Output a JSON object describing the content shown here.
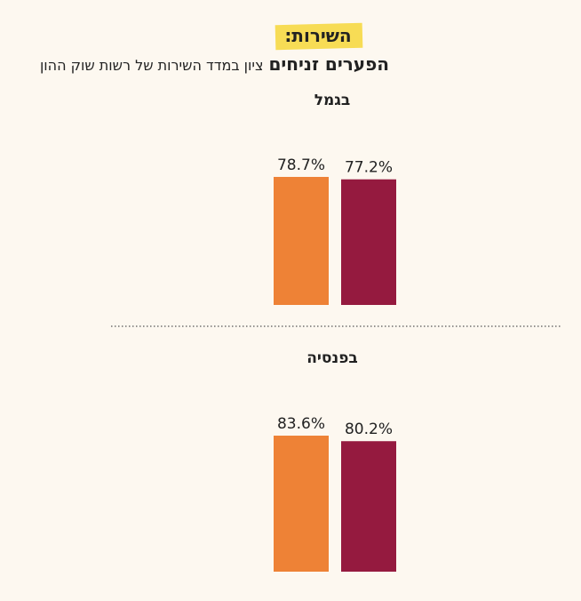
{
  "header": {
    "tag": "השירות:",
    "title": "הפערים זניחים",
    "subtitle": "ציון במדד השירות של רשות שוק ההון"
  },
  "chart_data": [
    {
      "type": "bar",
      "title": "בגמל",
      "categories": [
        null,
        null
      ],
      "values": [
        78.7,
        77.2
      ],
      "value_labels": [
        "78.7%",
        "77.2%"
      ],
      "colors": [
        "#ee8236",
        "#951a3f"
      ]
    },
    {
      "type": "bar",
      "title": "בפנסיה",
      "categories": [
        null,
        null
      ],
      "values": [
        83.6,
        80.2
      ],
      "value_labels": [
        "83.6%",
        "80.2%"
      ],
      "colors": [
        "#ee8236",
        "#951a3f"
      ]
    }
  ]
}
